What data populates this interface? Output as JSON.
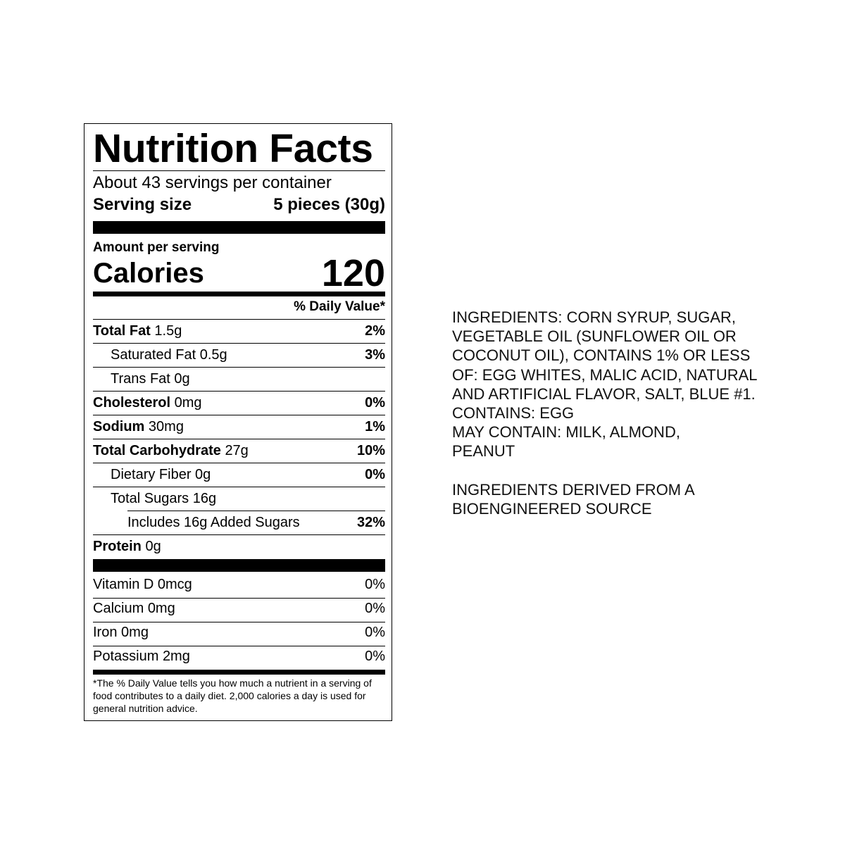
{
  "nutrition_label": {
    "title": "Nutrition Facts",
    "servings_per_container": "About 43 servings per container",
    "serving_size_label": "Serving size",
    "serving_size_value": "5 pieces (30g)",
    "amount_per_serving": "Amount per serving",
    "calories_label": "Calories",
    "calories_value": "120",
    "daily_value_header": "% Daily Value*",
    "nutrients": [
      {
        "name": "Total Fat",
        "amount": "1.5g",
        "dv": "2%"
      },
      {
        "name": "Saturated Fat",
        "amount": "0.5g",
        "dv": "3%"
      },
      {
        "name": "Trans Fat",
        "amount": "0g",
        "dv": ""
      },
      {
        "name": "Cholesterol",
        "amount": "0mg",
        "dv": "0%"
      },
      {
        "name": "Sodium",
        "amount": "30mg",
        "dv": "1%"
      },
      {
        "name": "Total Carbohydrate",
        "amount": "27g",
        "dv": "10%"
      },
      {
        "name": "Dietary Fiber",
        "amount": "0g",
        "dv": "0%"
      },
      {
        "name": "Total Sugars",
        "amount": "16g",
        "dv": ""
      },
      {
        "name": "Includes 16g Added Sugars",
        "amount": "",
        "dv": "32%"
      },
      {
        "name": "Protein",
        "amount": "0g",
        "dv": ""
      }
    ],
    "vitamins": [
      {
        "name": "Vitamin D",
        "amount": "0mcg",
        "dv": "0%"
      },
      {
        "name": "Calcium",
        "amount": "0mg",
        "dv": "0%"
      },
      {
        "name": "Iron",
        "amount": "0mg",
        "dv": "0%"
      },
      {
        "name": "Potassium",
        "amount": "2mg",
        "dv": "0%"
      }
    ],
    "footnote": "*The % Daily Value tells you how much a nutrient in a serving of food contributes to a daily diet. 2,000 calories a day is used for general nutrition advice."
  },
  "ingredients": {
    "list": "INGREDIENTS: CORN SYRUP, SUGAR, VEGETABLE OIL (SUNFLOWER OIL OR COCONUT OIL), CONTAINS 1% OR LESS OF: EGG WHITES, MALIC ACID, NATURAL AND ARTIFICIAL FLAVOR, SALT, BLUE #1.",
    "contains": "CONTAINS: EGG",
    "may_contain": "MAY CONTAIN: MILK, ALMOND, PEANUT",
    "bioengineered": "INGREDIENTS DERIVED FROM A BIOENGINEERED SOURCE"
  }
}
